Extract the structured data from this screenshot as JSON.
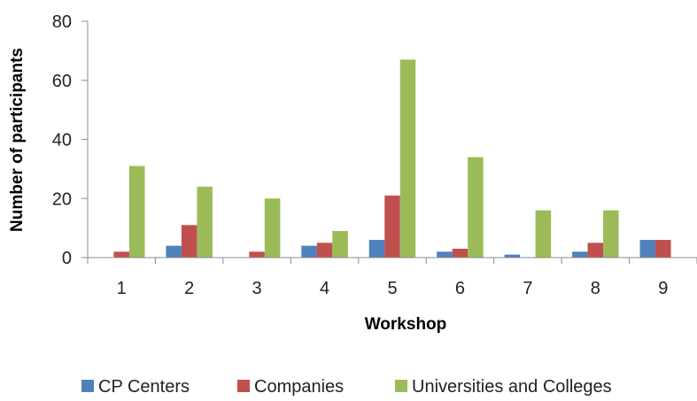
{
  "chart_data": {
    "type": "bar",
    "title": "",
    "xlabel": "Workshop",
    "ylabel": "Number of participants",
    "categories": [
      "1",
      "2",
      "3",
      "4",
      "5",
      "6",
      "7",
      "8",
      "9"
    ],
    "ylim": [
      0,
      80
    ],
    "yticks": [
      "0",
      "20",
      "40",
      "60",
      "80"
    ],
    "grid": false,
    "legend_position": "bottom",
    "series": [
      {
        "name": "CP Centers",
        "color": "#4F81BD",
        "values": [
          0,
          4,
          0,
          4,
          6,
          2,
          1,
          2,
          6
        ]
      },
      {
        "name": "Companies",
        "color": "#C0504D",
        "values": [
          2,
          11,
          2,
          5,
          21,
          3,
          0,
          5,
          6
        ]
      },
      {
        "name": "Universities and Colleges",
        "color": "#9BBB59",
        "values": [
          31,
          24,
          20,
          9,
          67,
          34,
          16,
          16,
          0
        ]
      }
    ]
  }
}
